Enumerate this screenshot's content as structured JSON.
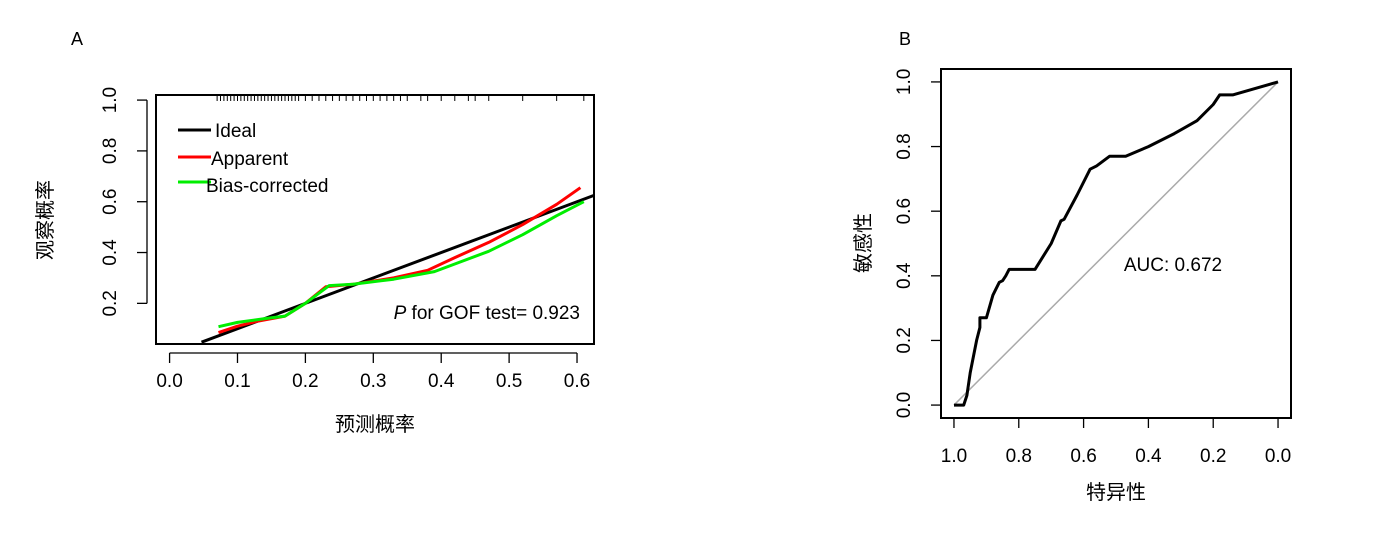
{
  "chart_data": [
    {
      "panel_label": "A",
      "type": "line",
      "xlabel": "预测概率",
      "ylabel": "观察概率",
      "xlim": [
        -0.02,
        0.625
      ],
      "ylim": [
        0.04,
        1.02
      ],
      "x_ticks": [
        "0.0",
        "0.1",
        "0.2",
        "0.3",
        "0.4",
        "0.5",
        "0.6"
      ],
      "y_ticks": [
        "0.2",
        "0.4",
        "0.6",
        "0.8",
        "1.0"
      ],
      "legend_position": "top-left",
      "annotation": {
        "italic": "P",
        "text": " for GOF test= 0.923"
      },
      "colors": {
        "Ideal": "#000000",
        "Apparent": "#ff0000",
        "Bias-corrected": "#00ee00"
      },
      "series": [
        {
          "name": "Ideal",
          "x": [
            0.047,
            0.625
          ],
          "y": [
            0.047,
            0.625
          ]
        },
        {
          "name": "Apparent",
          "x": [
            0.072,
            0.1,
            0.13,
            0.17,
            0.2,
            0.23,
            0.27,
            0.33,
            0.38,
            0.42,
            0.47,
            0.52,
            0.57,
            0.605
          ],
          "y": [
            0.085,
            0.11,
            0.13,
            0.15,
            0.2,
            0.265,
            0.275,
            0.3,
            0.33,
            0.38,
            0.44,
            0.51,
            0.59,
            0.655
          ]
        },
        {
          "name": "Bias-corrected",
          "x": [
            0.072,
            0.1,
            0.14,
            0.17,
            0.2,
            0.235,
            0.27,
            0.33,
            0.39,
            0.42,
            0.47,
            0.52,
            0.57,
            0.61
          ],
          "y": [
            0.108,
            0.125,
            0.14,
            0.15,
            0.2,
            0.27,
            0.275,
            0.295,
            0.325,
            0.355,
            0.405,
            0.47,
            0.545,
            0.6
          ]
        }
      ],
      "rug_x": [
        0.07,
        0.075,
        0.08,
        0.085,
        0.09,
        0.095,
        0.1,
        0.105,
        0.11,
        0.115,
        0.12,
        0.125,
        0.13,
        0.135,
        0.14,
        0.145,
        0.15,
        0.155,
        0.16,
        0.165,
        0.17,
        0.175,
        0.18,
        0.185,
        0.19,
        0.2,
        0.21,
        0.22,
        0.23,
        0.24,
        0.25,
        0.26,
        0.27,
        0.28,
        0.29,
        0.3,
        0.31,
        0.32,
        0.33,
        0.34,
        0.35,
        0.37,
        0.38,
        0.4,
        0.42,
        0.44,
        0.45,
        0.47,
        0.52,
        0.57,
        0.61
      ]
    },
    {
      "panel_label": "B",
      "type": "line",
      "xlabel": "特异性",
      "ylabel": "敏感性",
      "x_reversed": true,
      "xlim": [
        1.04,
        -0.04
      ],
      "ylim": [
        -0.04,
        1.04
      ],
      "x_ticks": [
        "1.0",
        "0.8",
        "0.6",
        "0.4",
        "0.2",
        "0.0"
      ],
      "y_ticks": [
        "0.0",
        "0.2",
        "0.4",
        "0.6",
        "0.8",
        "1.0"
      ],
      "annotation": "AUC: 0.672",
      "colors": {
        "roc": "#000000",
        "diagonal": "#aaaaaa"
      },
      "series": [
        {
          "name": "",
          "x": [
            1.0,
            0.97,
            0.96,
            0.95,
            0.93,
            0.92,
            0.92,
            0.9,
            0.88,
            0.87,
            0.86,
            0.85,
            0.84,
            0.83,
            0.82,
            0.8,
            0.75,
            0.7,
            0.67,
            0.66,
            0.62,
            0.58,
            0.56,
            0.52,
            0.47,
            0.4,
            0.32,
            0.25,
            0.2,
            0.18,
            0.14,
            0.0
          ],
          "y": [
            0.0,
            0.0,
            0.03,
            0.1,
            0.2,
            0.24,
            0.27,
            0.27,
            0.34,
            0.36,
            0.38,
            0.385,
            0.4,
            0.42,
            0.42,
            0.42,
            0.42,
            0.5,
            0.57,
            0.575,
            0.65,
            0.73,
            0.74,
            0.77,
            0.77,
            0.8,
            0.84,
            0.88,
            0.93,
            0.96,
            0.96,
            1.0
          ]
        }
      ],
      "diagonal": {
        "x": [
          1.0,
          0.0
        ],
        "y": [
          0.0,
          1.0
        ]
      }
    }
  ]
}
